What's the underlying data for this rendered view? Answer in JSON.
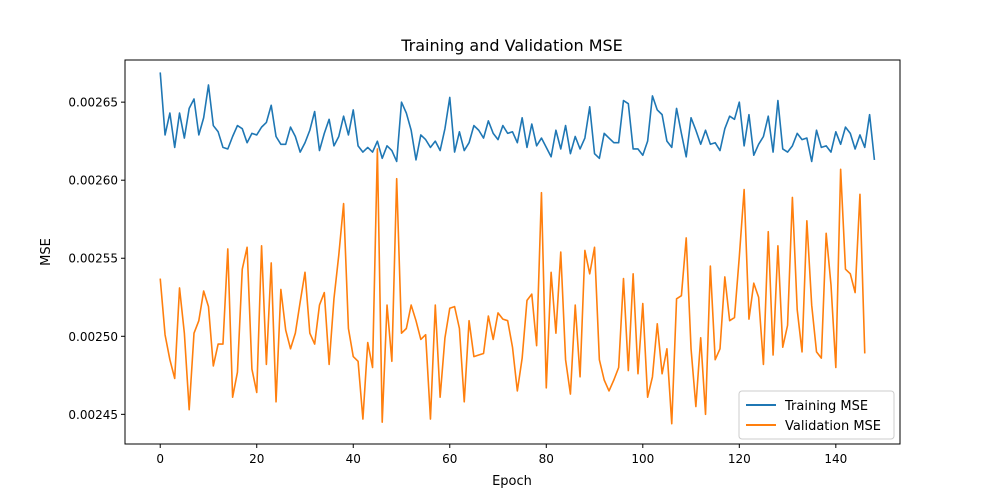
{
  "chart_data": {
    "type": "line",
    "title": "Training and Validation MSE",
    "xlabel": "Epoch",
    "ylabel": "MSE",
    "xlim": [
      -7.3,
      153.3
    ],
    "ylim": [
      0.002431,
      0.002677
    ],
    "xticks": [
      0,
      20,
      40,
      60,
      80,
      100,
      120,
      140
    ],
    "yticks": [
      0.00245,
      0.0025,
      0.00255,
      0.0026,
      0.00265
    ],
    "ytick_labels": [
      "0.00245",
      "0.00250",
      "0.00255",
      "0.00260",
      "0.00265"
    ],
    "grid": false,
    "legend": "lower-right",
    "series": [
      {
        "name": "Training MSE",
        "color": "#1f77b4",
        "values": [
          0.002669,
          0.002629,
          0.002643,
          0.002621,
          0.002643,
          0.002627,
          0.002646,
          0.002652,
          0.002629,
          0.00264,
          0.002661,
          0.002635,
          0.002631,
          0.002621,
          0.00262,
          0.002628,
          0.002635,
          0.002633,
          0.002624,
          0.00263,
          0.002629,
          0.002634,
          0.002637,
          0.002648,
          0.002628,
          0.002623,
          0.002623,
          0.002634,
          0.002628,
          0.002618,
          0.002624,
          0.002632,
          0.002644,
          0.002619,
          0.00263,
          0.002639,
          0.002622,
          0.002628,
          0.002641,
          0.002629,
          0.002645,
          0.002622,
          0.002618,
          0.002621,
          0.002618,
          0.002625,
          0.002614,
          0.002622,
          0.002619,
          0.002612,
          0.00265,
          0.002643,
          0.002632,
          0.002613,
          0.002629,
          0.002626,
          0.002621,
          0.002625,
          0.002619,
          0.002633,
          0.002653,
          0.002618,
          0.002631,
          0.002619,
          0.002624,
          0.002635,
          0.002632,
          0.002627,
          0.002638,
          0.00263,
          0.002626,
          0.002635,
          0.00263,
          0.002631,
          0.002624,
          0.00264,
          0.002621,
          0.002636,
          0.002622,
          0.002627,
          0.002621,
          0.002615,
          0.002632,
          0.00262,
          0.002635,
          0.002617,
          0.002628,
          0.00262,
          0.002627,
          0.002647,
          0.002617,
          0.002614,
          0.00263,
          0.002627,
          0.002624,
          0.002624,
          0.002651,
          0.002649,
          0.00262,
          0.00262,
          0.002616,
          0.002625,
          0.002654,
          0.002645,
          0.002642,
          0.002625,
          0.002621,
          0.002646,
          0.00263,
          0.002615,
          0.00264,
          0.002632,
          0.002623,
          0.002632,
          0.002623,
          0.002624,
          0.002619,
          0.002633,
          0.002641,
          0.002639,
          0.00265,
          0.002622,
          0.002642,
          0.002616,
          0.002623,
          0.002628,
          0.002641,
          0.002618,
          0.002651,
          0.00262,
          0.002618,
          0.002622,
          0.00263,
          0.002626,
          0.002627,
          0.002612,
          0.002632,
          0.002621,
          0.002622,
          0.002618,
          0.002631,
          0.002623,
          0.002634,
          0.00263,
          0.00262,
          0.002629,
          0.002621,
          0.002642,
          0.002613
        ]
      },
      {
        "name": "Validation MSE",
        "color": "#ff7f0e",
        "values": [
          0.002537,
          0.002501,
          0.002485,
          0.002473,
          0.002531,
          0.002502,
          0.002453,
          0.002502,
          0.00251,
          0.002529,
          0.002519,
          0.002481,
          0.002495,
          0.002495,
          0.002556,
          0.002461,
          0.002477,
          0.002543,
          0.002557,
          0.002479,
          0.002464,
          0.002558,
          0.002482,
          0.002547,
          0.002458,
          0.00253,
          0.002504,
          0.002492,
          0.002502,
          0.002522,
          0.002541,
          0.002502,
          0.002495,
          0.00252,
          0.002528,
          0.002482,
          0.002524,
          0.002552,
          0.002585,
          0.002505,
          0.002487,
          0.002484,
          0.002447,
          0.002496,
          0.00248,
          0.00262,
          0.002445,
          0.00252,
          0.002484,
          0.002601,
          0.002502,
          0.002505,
          0.00252,
          0.00251,
          0.002498,
          0.002501,
          0.002447,
          0.00252,
          0.002461,
          0.002499,
          0.002518,
          0.002519,
          0.002505,
          0.002458,
          0.00251,
          0.002487,
          0.002488,
          0.002489,
          0.002513,
          0.002498,
          0.002515,
          0.002511,
          0.00251,
          0.002493,
          0.002465,
          0.002486,
          0.002523,
          0.002527,
          0.002494,
          0.002592,
          0.002467,
          0.002541,
          0.002502,
          0.002554,
          0.002485,
          0.002463,
          0.00252,
          0.002474,
          0.002555,
          0.00254,
          0.002557,
          0.002485,
          0.002472,
          0.002465,
          0.002472,
          0.00248,
          0.002537,
          0.002478,
          0.00254,
          0.002476,
          0.002521,
          0.002461,
          0.002474,
          0.002508,
          0.002476,
          0.002492,
          0.002444,
          0.002524,
          0.002526,
          0.002563,
          0.002492,
          0.002455,
          0.002499,
          0.00245,
          0.002545,
          0.002485,
          0.002492,
          0.002538,
          0.00251,
          0.002512,
          0.002551,
          0.002594,
          0.002511,
          0.002534,
          0.002525,
          0.002482,
          0.002567,
          0.002488,
          0.002558,
          0.002493,
          0.002507,
          0.002589,
          0.002517,
          0.00249,
          0.002574,
          0.00252,
          0.00249,
          0.002486,
          0.002566,
          0.002533,
          0.00248,
          0.002607,
          0.002543,
          0.00254,
          0.002528,
          0.002591,
          0.002489
        ]
      }
    ]
  }
}
